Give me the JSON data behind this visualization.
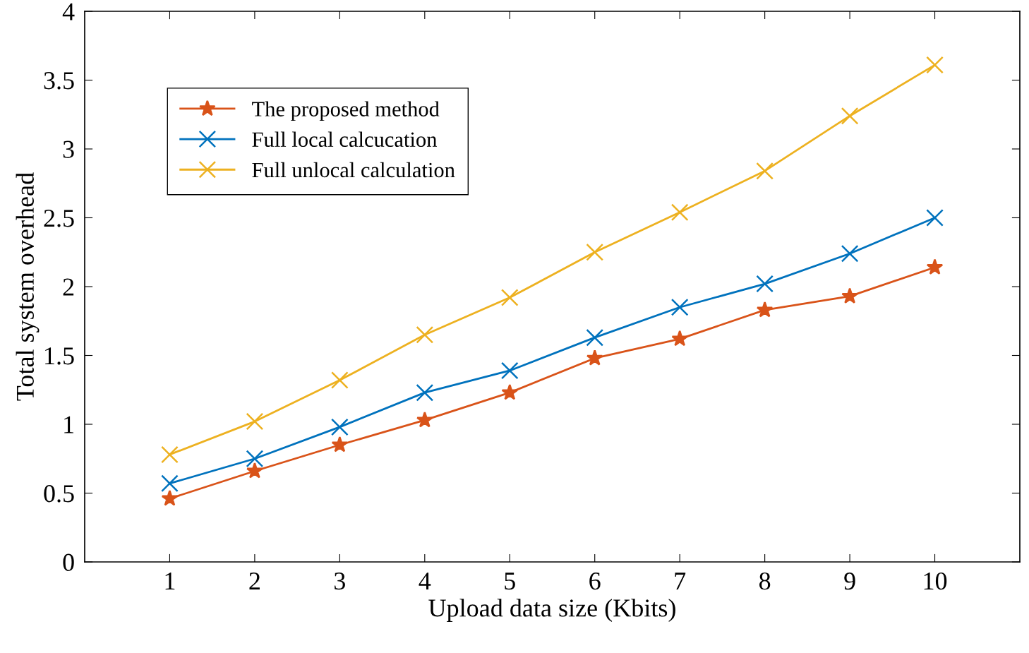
{
  "chart_data": {
    "type": "line",
    "xlabel": "Upload data size (Kbits)",
    "ylabel": "Total system overhead",
    "x": [
      1,
      2,
      3,
      4,
      5,
      6,
      7,
      8,
      9,
      10
    ],
    "xlim": [
      0,
      11
    ],
    "xticks": [
      1,
      2,
      3,
      4,
      5,
      6,
      7,
      8,
      9,
      10
    ],
    "ylim": [
      0,
      4
    ],
    "yticks": [
      0,
      0.5,
      1,
      1.5,
      2,
      2.5,
      3,
      3.5,
      4
    ],
    "grid": false,
    "legend": "top left",
    "line_style": "solid",
    "series": [
      {
        "name": "The proposed method",
        "color": "#d95319",
        "marker": "star",
        "values": [
          0.46,
          0.66,
          0.85,
          1.03,
          1.23,
          1.48,
          1.62,
          1.83,
          1.93,
          2.14
        ]
      },
      {
        "name": "Full local calcucation",
        "color": "#0072bd",
        "marker": "cross",
        "values": [
          0.57,
          0.75,
          0.98,
          1.23,
          1.39,
          1.63,
          1.85,
          2.02,
          2.24,
          2.5
        ]
      },
      {
        "name": "Full unlocal calculation",
        "color": "#edb120",
        "marker": "cross",
        "values": [
          0.78,
          1.02,
          1.32,
          1.65,
          1.92,
          2.25,
          2.54,
          2.84,
          3.24,
          3.61
        ]
      }
    ]
  }
}
